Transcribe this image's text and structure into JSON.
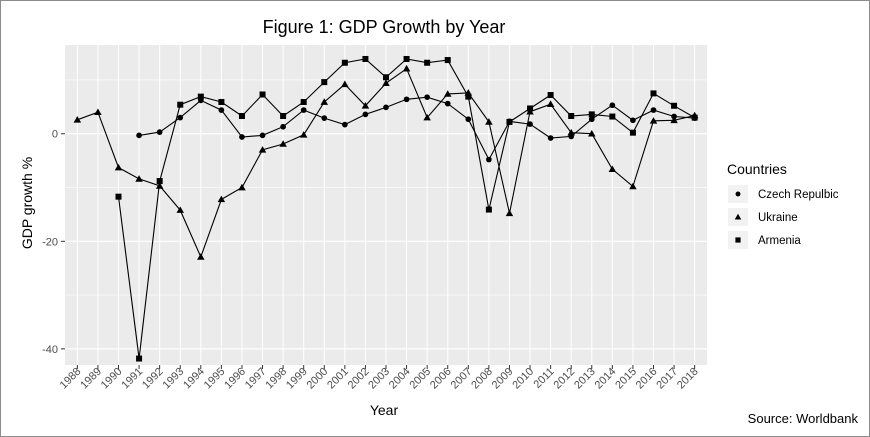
{
  "chart_data": {
    "type": "line",
    "title": "Figure 1: GDP Growth by Year",
    "xlabel": "Year",
    "ylabel": "GDP growth %",
    "caption": "Source: Worldbank",
    "legend_title": "Countries",
    "legend_position": "right",
    "grid": true,
    "background": "#ebebeb",
    "gridline_color": "#ffffff",
    "line_color": "#000000",
    "categories": [
      1988,
      1989,
      1990,
      1991,
      1992,
      1993,
      1994,
      1995,
      1996,
      1997,
      1998,
      1999,
      2000,
      2001,
      2002,
      2003,
      2004,
      2005,
      2006,
      2007,
      2008,
      2009,
      2010,
      2011,
      2012,
      2013,
      2014,
      2015,
      2016,
      2017,
      2018
    ],
    "xlim": [
      1988,
      2018
    ],
    "ylim": [
      -43,
      16.5
    ],
    "y_ticks": [
      0,
      -20,
      -40
    ],
    "series": [
      {
        "name": "Czech Repulbic",
        "marker": "circle",
        "x": [
          1991,
          1992,
          1993,
          1994,
          1995,
          1996,
          1997,
          1998,
          1999,
          2000,
          2001,
          2002,
          2003,
          2004,
          2005,
          2006,
          2007,
          2008,
          2009,
          2010,
          2011,
          2012,
          2013,
          2014,
          2015,
          2016,
          2017,
          2018
        ],
        "values": [
          -0.3,
          0.3,
          3.0,
          6.2,
          4.4,
          -0.6,
          -0.3,
          1.3,
          4.4,
          2.9,
          1.7,
          3.6,
          4.9,
          6.4,
          6.8,
          5.6,
          2.7,
          -4.8,
          2.3,
          1.8,
          -0.8,
          -0.5,
          2.7,
          5.3,
          2.5,
          4.4,
          3.2,
          2.9
        ]
      },
      {
        "name": "Ukraine",
        "marker": "triangle",
        "x": [
          1988,
          1989,
          1990,
          1991,
          1992,
          1993,
          1994,
          1995,
          1996,
          1997,
          1998,
          1999,
          2000,
          2001,
          2002,
          2003,
          2004,
          2005,
          2006,
          2007,
          2008,
          2009,
          2010,
          2011,
          2012,
          2013,
          2014,
          2015,
          2016,
          2017,
          2018
        ],
        "values": [
          2.6,
          4.0,
          -6.3,
          -8.4,
          -9.7,
          -14.2,
          -22.9,
          -12.2,
          -10.0,
          -3.0,
          -1.9,
          -0.2,
          5.9,
          9.2,
          5.2,
          9.4,
          12.1,
          3.0,
          7.4,
          7.6,
          2.2,
          -14.8,
          4.1,
          5.5,
          0.2,
          0.0,
          -6.6,
          -9.8,
          2.4,
          2.5,
          3.4
        ]
      },
      {
        "name": "Armenia",
        "marker": "square",
        "x": [
          1990,
          1991,
          1992,
          1993,
          1994,
          1995,
          1996,
          1997,
          1998,
          1999,
          2000,
          2001,
          2002,
          2003,
          2004,
          2005,
          2006,
          2007,
          2008,
          2009,
          2010,
          2011,
          2012,
          2013,
          2014,
          2015,
          2016,
          2017,
          2018
        ],
        "values": [
          -11.7,
          -41.8,
          -8.8,
          5.4,
          6.9,
          5.9,
          3.3,
          7.3,
          3.3,
          5.9,
          9.6,
          13.2,
          13.9,
          10.5,
          13.9,
          13.2,
          13.7,
          6.9,
          -14.1,
          2.2,
          4.7,
          7.2,
          3.3,
          3.6,
          3.2,
          0.2,
          7.5,
          5.2,
          3.0
        ]
      }
    ]
  }
}
